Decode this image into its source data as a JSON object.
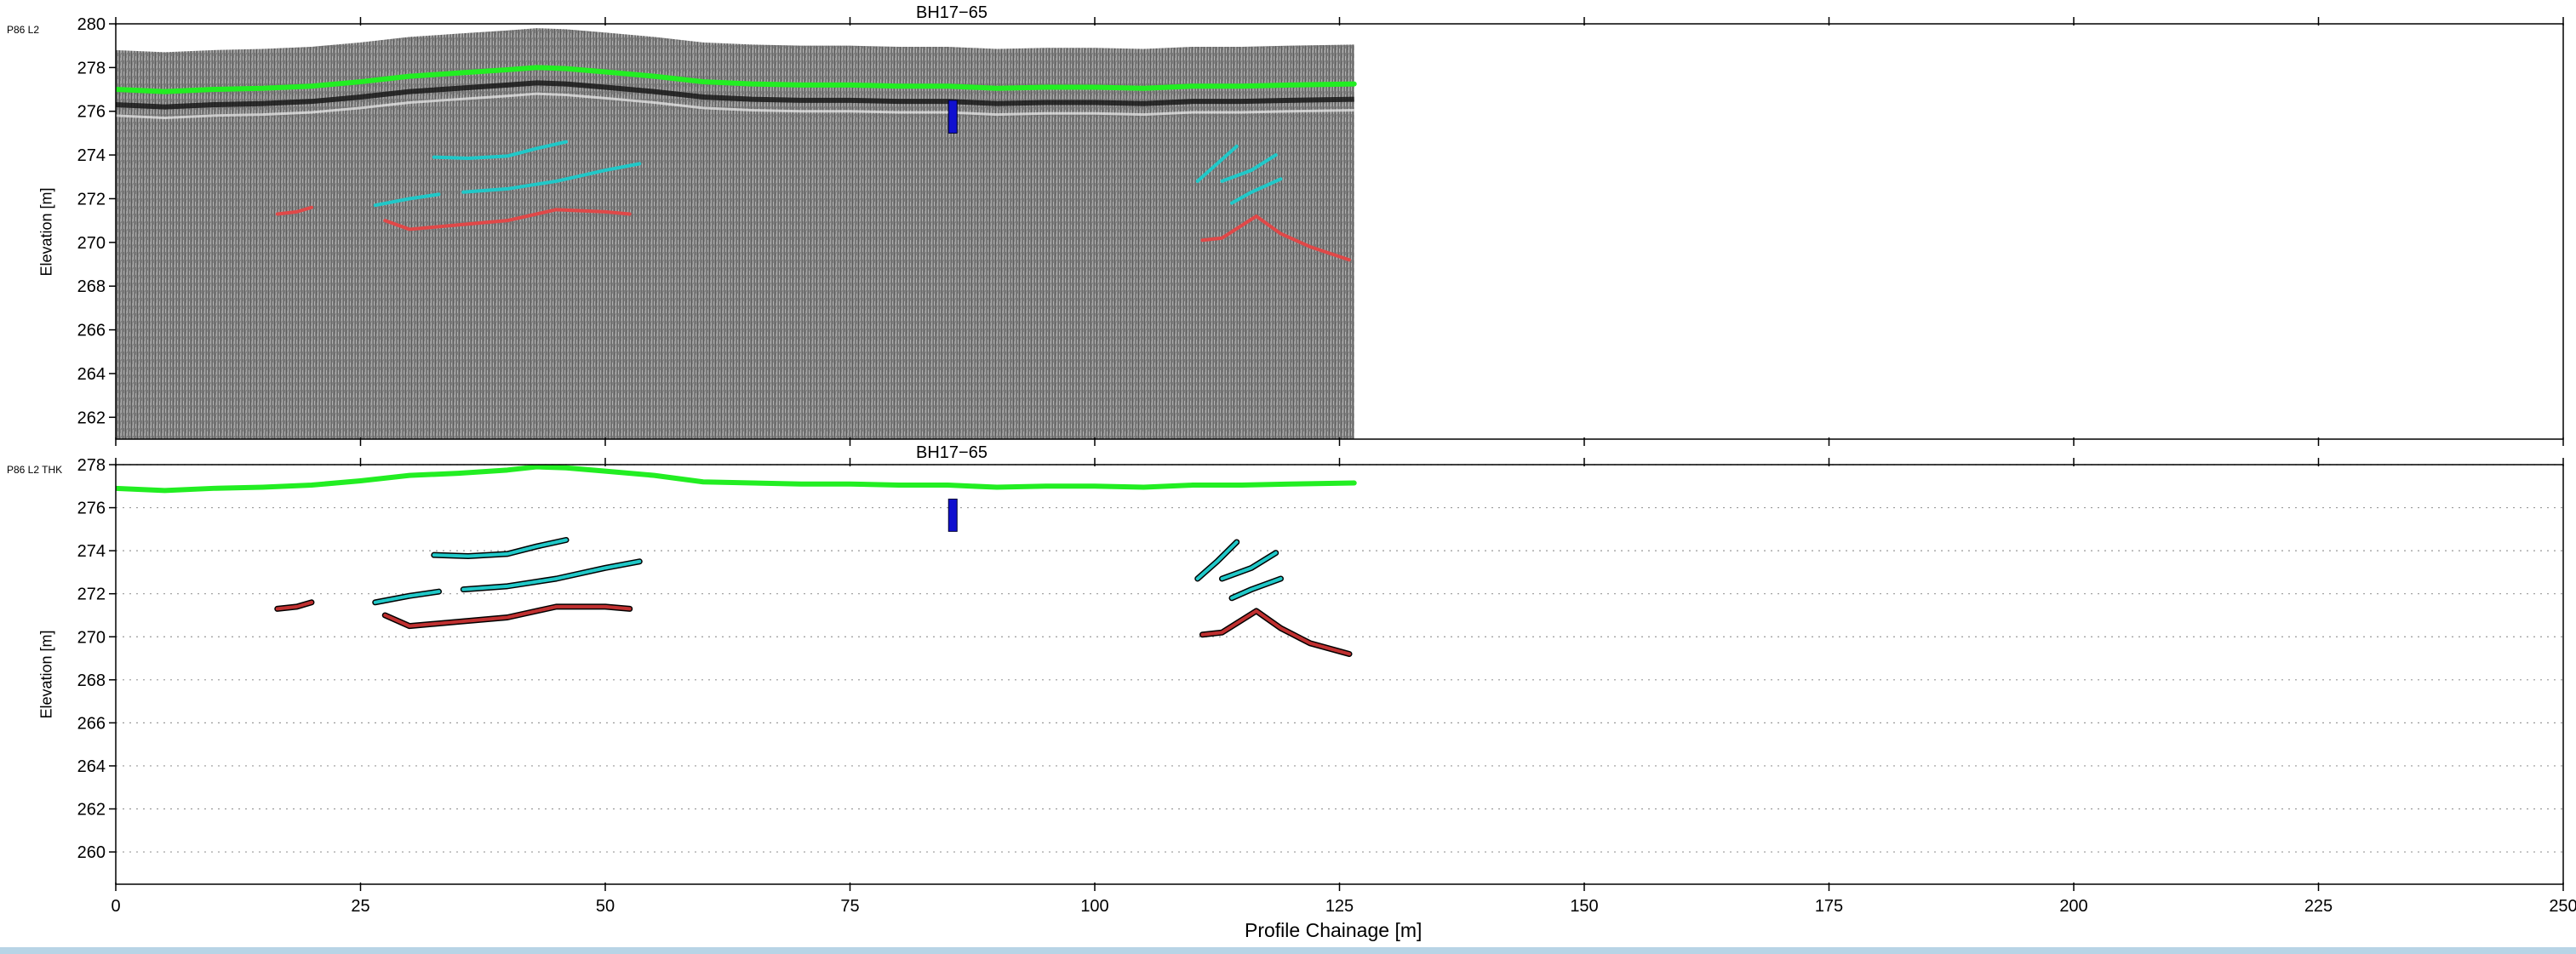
{
  "chart_data": [
    {
      "type": "line",
      "panel_label": "P86 L2",
      "title": "BH17−65",
      "xlabel": "",
      "ylabel": "Elevation [m]",
      "xlim": [
        0,
        250
      ],
      "ylim": [
        261,
        280
      ],
      "x_ticks": [],
      "y_ticks": [
        262,
        264,
        266,
        268,
        270,
        272,
        274,
        276,
        278,
        280
      ],
      "radargram_extent_x": [
        0,
        126.5
      ],
      "background": "GPR radargram (grayscale)",
      "grid": false,
      "series": [
        {
          "color": "#22ee22",
          "x": [
            0,
            5,
            10,
            15,
            20,
            25,
            30,
            35,
            40,
            43,
            46,
            50,
            55,
            60,
            65,
            70,
            75,
            80,
            85,
            90,
            95,
            100,
            105,
            110,
            115,
            120,
            126.5
          ],
          "y": [
            277.0,
            276.9,
            277.0,
            277.05,
            277.15,
            277.35,
            277.6,
            277.75,
            277.9,
            278.0,
            277.95,
            277.8,
            277.6,
            277.35,
            277.25,
            277.2,
            277.2,
            277.15,
            277.15,
            277.05,
            277.1,
            277.1,
            277.05,
            277.15,
            277.15,
            277.2,
            277.25
          ]
        },
        {
          "color": "#20c8c8",
          "x": [
            32.5,
            36,
            40,
            43,
            46
          ],
          "y": [
            273.9,
            273.85,
            273.95,
            274.3,
            274.6
          ]
        },
        {
          "color": "#20c8c8",
          "x": [
            35.5,
            40,
            45,
            50,
            53.5
          ],
          "y": [
            272.3,
            272.45,
            272.8,
            273.3,
            273.6
          ]
        },
        {
          "color": "#20c8c8",
          "x": [
            26.5,
            30,
            33
          ],
          "y": [
            271.7,
            272.0,
            272.2
          ]
        },
        {
          "color": "#e04848",
          "x": [
            16.5,
            18.5,
            20
          ],
          "y": [
            271.3,
            271.4,
            271.6
          ]
        },
        {
          "color": "#e04848",
          "x": [
            27.5,
            30,
            35,
            40,
            45,
            50,
            52.5
          ],
          "y": [
            271.0,
            270.6,
            270.8,
            271.0,
            271.5,
            271.4,
            271.3
          ]
        },
        {
          "color": "#20c8c8",
          "x": [
            110.5,
            112.5,
            114.5
          ],
          "y": [
            272.8,
            273.6,
            274.4
          ]
        },
        {
          "color": "#20c8c8",
          "x": [
            113,
            116,
            118.5
          ],
          "y": [
            272.8,
            273.3,
            274.0
          ]
        },
        {
          "color": "#20c8c8",
          "x": [
            114,
            116,
            119
          ],
          "y": [
            271.8,
            272.3,
            272.9
          ]
        },
        {
          "color": "#e04848",
          "x": [
            111,
            113,
            116.5,
            119,
            122,
            126
          ],
          "y": [
            270.1,
            270.2,
            271.2,
            270.4,
            269.8,
            269.2
          ]
        }
      ],
      "annotations": [
        {
          "type": "borehole",
          "color": "#1010d0",
          "x": 85.5,
          "y_top": 276.5,
          "y_bottom": 275.0
        }
      ]
    },
    {
      "type": "line",
      "panel_label": "P86 L2 THK",
      "title": "BH17−65",
      "xlabel": "Profile Chainage [m]",
      "ylabel": "Elevation [m]",
      "xlim": [
        0,
        250
      ],
      "ylim": [
        258.5,
        278
      ],
      "x_ticks": [
        0,
        25,
        50,
        75,
        100,
        125,
        150,
        175,
        200,
        225,
        250
      ],
      "y_ticks": [
        260,
        262,
        264,
        266,
        268,
        270,
        272,
        274,
        276,
        278
      ],
      "grid": "horizontal dotted",
      "series": [
        {
          "color": "#22ee22",
          "x": [
            0,
            5,
            10,
            15,
            20,
            25,
            30,
            35,
            40,
            43,
            46,
            50,
            55,
            60,
            65,
            70,
            75,
            80,
            85,
            90,
            95,
            100,
            105,
            110,
            115,
            120,
            126.5
          ],
          "y": [
            276.9,
            276.8,
            276.9,
            276.95,
            277.05,
            277.25,
            277.5,
            277.6,
            277.75,
            277.9,
            277.85,
            277.7,
            277.5,
            277.2,
            277.15,
            277.1,
            277.1,
            277.05,
            277.05,
            276.95,
            277.0,
            277.0,
            276.95,
            277.05,
            277.05,
            277.1,
            277.15
          ]
        },
        {
          "color": "#20c8c8",
          "x": [
            32.5,
            36,
            40,
            43,
            46
          ],
          "y": [
            273.8,
            273.75,
            273.85,
            274.2,
            274.5
          ]
        },
        {
          "color": "#20c8c8",
          "x": [
            35.5,
            40,
            45,
            50,
            53.5
          ],
          "y": [
            272.2,
            272.35,
            272.7,
            273.2,
            273.5
          ]
        },
        {
          "color": "#20c8c8",
          "x": [
            26.5,
            30,
            33
          ],
          "y": [
            271.6,
            271.9,
            272.1
          ]
        },
        {
          "color": "#c03030",
          "x": [
            16.5,
            18.5,
            20
          ],
          "y": [
            271.3,
            271.4,
            271.6
          ]
        },
        {
          "color": "#c03030",
          "x": [
            27.5,
            30,
            35,
            40,
            45,
            50,
            52.5
          ],
          "y": [
            271.0,
            270.5,
            270.7,
            270.9,
            271.4,
            271.4,
            271.3
          ]
        },
        {
          "color": "#20c8c8",
          "x": [
            110.5,
            112.5,
            114.5
          ],
          "y": [
            272.7,
            273.5,
            274.4
          ]
        },
        {
          "color": "#20c8c8",
          "x": [
            113,
            116,
            118.5
          ],
          "y": [
            272.7,
            273.2,
            273.9
          ]
        },
        {
          "color": "#20c8c8",
          "x": [
            114,
            116,
            119
          ],
          "y": [
            271.8,
            272.2,
            272.7
          ]
        },
        {
          "color": "#c03030",
          "x": [
            111,
            113,
            116.5,
            119,
            122,
            126
          ],
          "y": [
            270.1,
            270.2,
            271.2,
            270.4,
            269.7,
            269.2
          ]
        }
      ],
      "annotations": [
        {
          "type": "borehole",
          "color": "#1010d0",
          "x": 85.5,
          "y_top": 276.4,
          "y_bottom": 274.9
        }
      ]
    }
  ]
}
